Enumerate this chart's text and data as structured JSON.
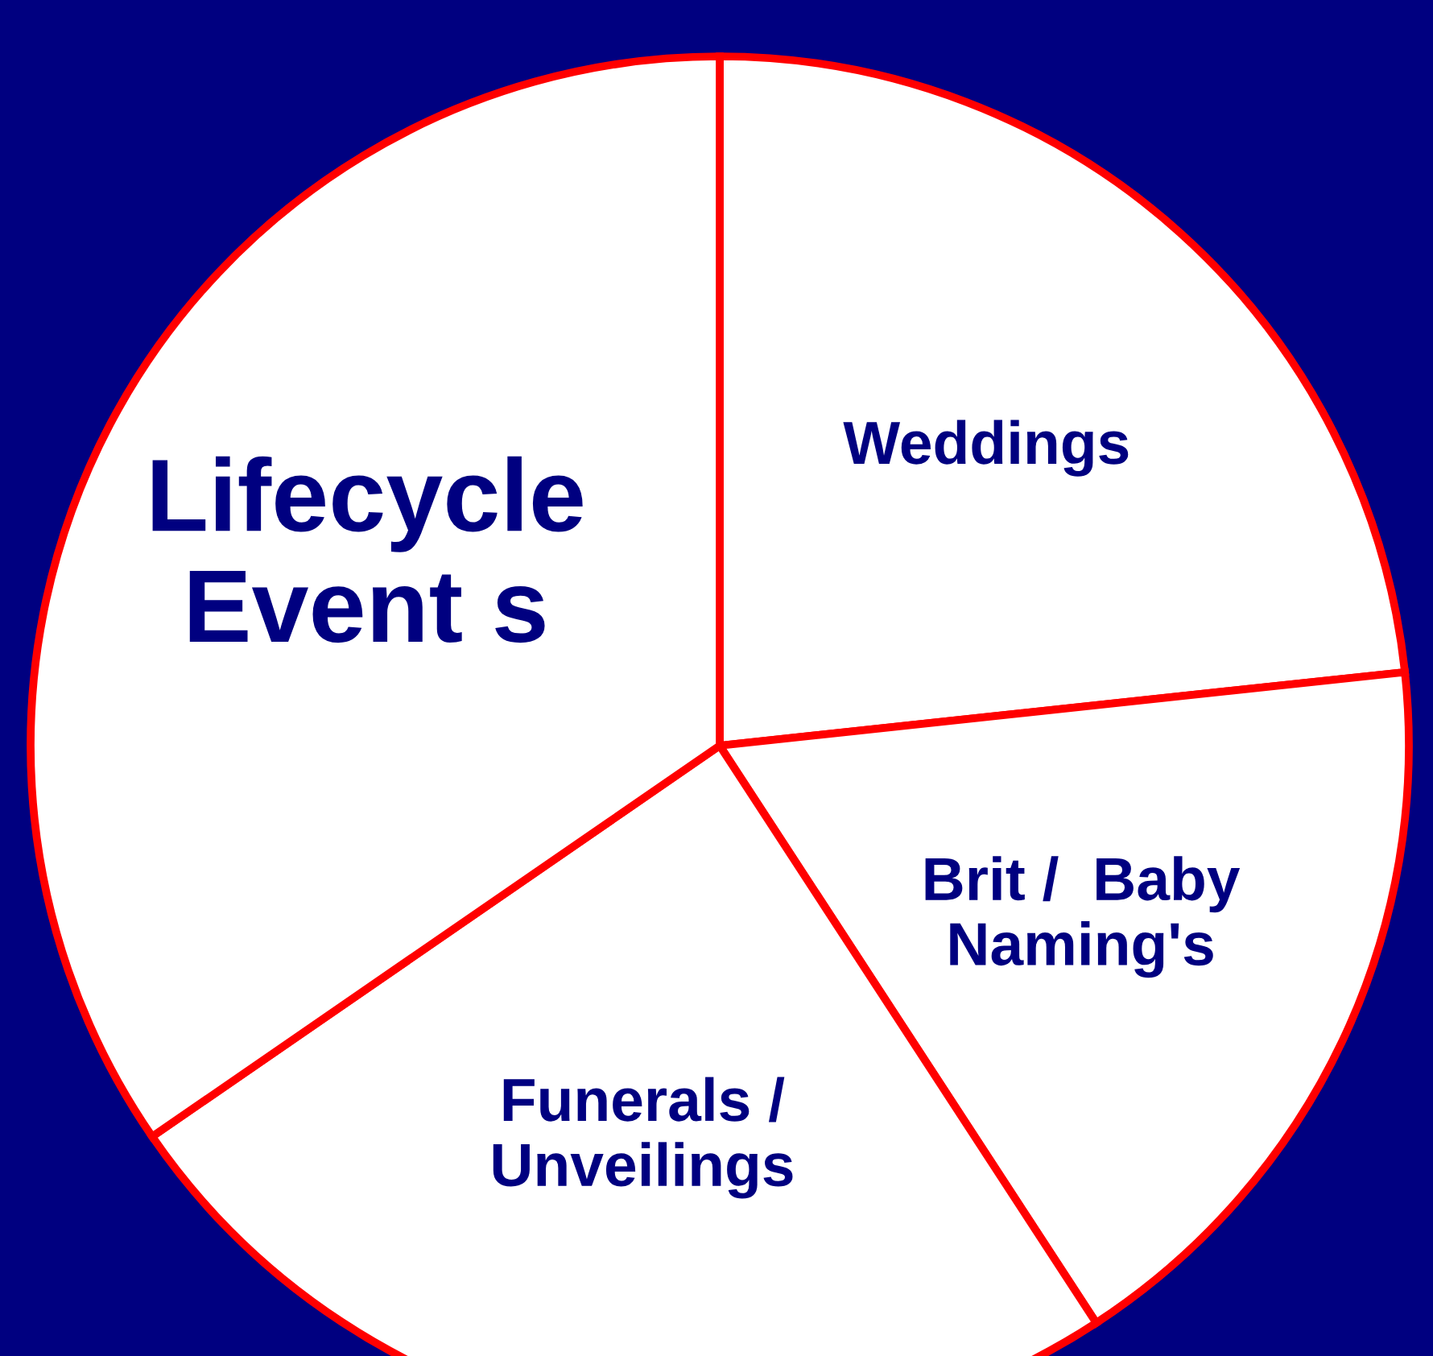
{
  "chart_data": {
    "type": "pie",
    "categories": [
      "Weddings",
      "Brit /  Baby\nNaming's",
      "Funerals /\nUnveilings",
      "Lifecycle\nEvent s"
    ],
    "values": [
      23.3,
      17.5,
      24.6,
      34.6
    ],
    "colors": [
      "#ffffff",
      "#ffffff",
      "#ffffff",
      "#ffffff"
    ]
  }
}
